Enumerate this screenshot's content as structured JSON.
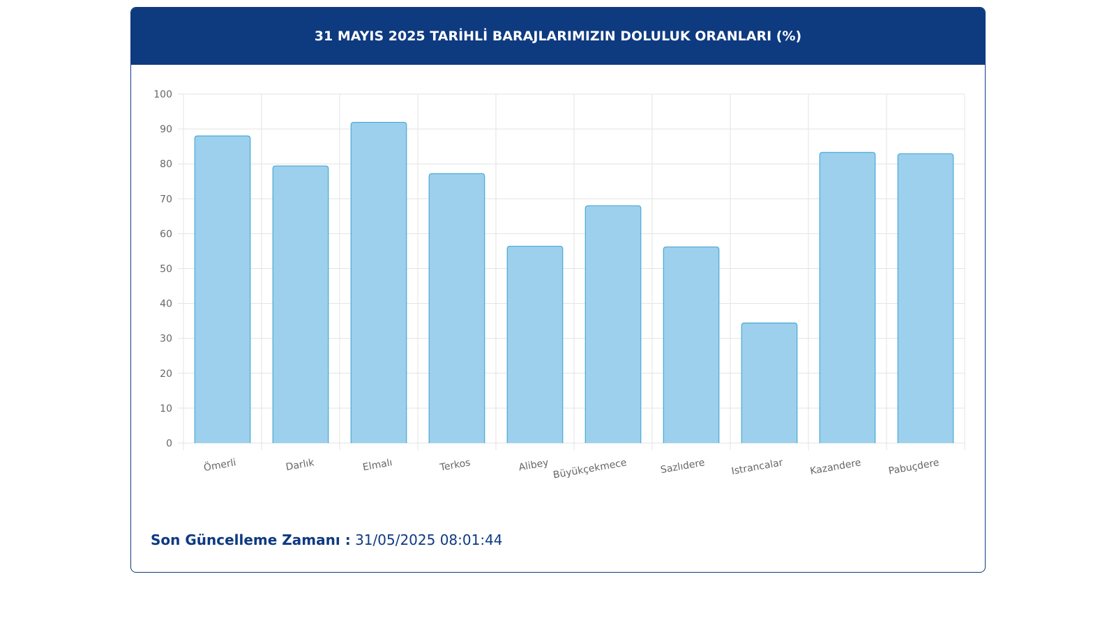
{
  "chart_data": {
    "type": "bar",
    "title": "31 MAYIS 2025 TARİHLİ BARAJLARIMIZIN DOLULUK ORANLARI (%)",
    "categories": [
      "Ömerli",
      "Darlık",
      "Elmalı",
      "Terkos",
      "Alibey",
      "Büyükçekmece",
      "Sazlıdere",
      "Istrancalar",
      "Kazandere",
      "Pabuçdere"
    ],
    "values": [
      88.0,
      79.4,
      91.9,
      77.2,
      56.4,
      68.0,
      56.2,
      34.4,
      83.3,
      82.9
    ],
    "color": "#9dd0ec",
    "border_color": "#4aa8d8",
    "ylim": [
      0,
      100
    ],
    "yticks": [
      0,
      10,
      20,
      30,
      40,
      50,
      60,
      70,
      80,
      90,
      100
    ],
    "grid": true
  },
  "footer": {
    "label": "Son Güncelleme Zamanı :",
    "value": "31/05/2025 08:01:44"
  }
}
